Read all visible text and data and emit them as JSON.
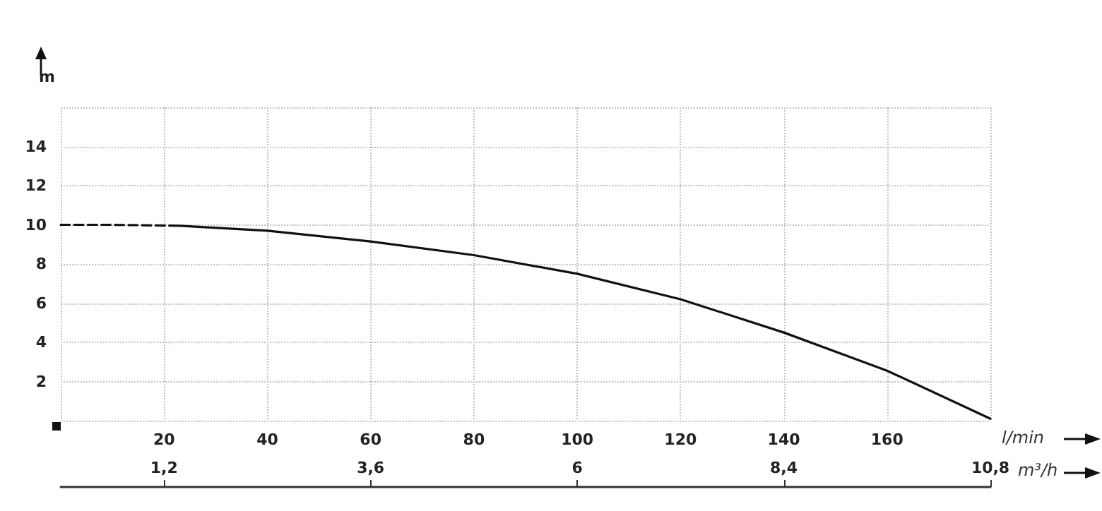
{
  "chart_data": {
    "type": "line",
    "xlabel": "l/min",
    "ylabel": "m",
    "x2label": "m³/h",
    "series": [
      {
        "color": "#111111",
        "line_style": "dashed",
        "x": [
          0,
          10,
          23
        ],
        "values": [
          10,
          10,
          9.95
        ]
      },
      {
        "color": "#111111",
        "line_style": "solid",
        "x": [
          23,
          40,
          60,
          80,
          100,
          120,
          140,
          160,
          180
        ],
        "values": [
          9.95,
          9.7,
          9.15,
          8.45,
          7.5,
          6.2,
          4.5,
          2.55,
          0.1
        ]
      }
    ],
    "xlim": [
      0,
      180
    ],
    "xticks": [
      {
        "value": 0,
        "label": null
      },
      20,
      40,
      60,
      80,
      100,
      120,
      140,
      160,
      {
        "value": 180,
        "label": null
      }
    ],
    "x2lim": [
      0,
      10.8
    ],
    "x2ticks": [
      {
        "value": 1.2,
        "label": "1,2"
      },
      {
        "value": 3.6,
        "label": "3,6"
      },
      6,
      {
        "value": 8.4,
        "label": "8,4"
      },
      {
        "value": 10.8,
        "label": "10,8"
      }
    ],
    "ylim": [
      0,
      16
    ],
    "yticks": [
      {
        "value": 0,
        "label": null
      },
      2,
      4,
      6,
      8,
      10,
      12,
      14,
      {
        "value": 16,
        "label": null
      }
    ],
    "grid": true,
    "marker": "none"
  }
}
